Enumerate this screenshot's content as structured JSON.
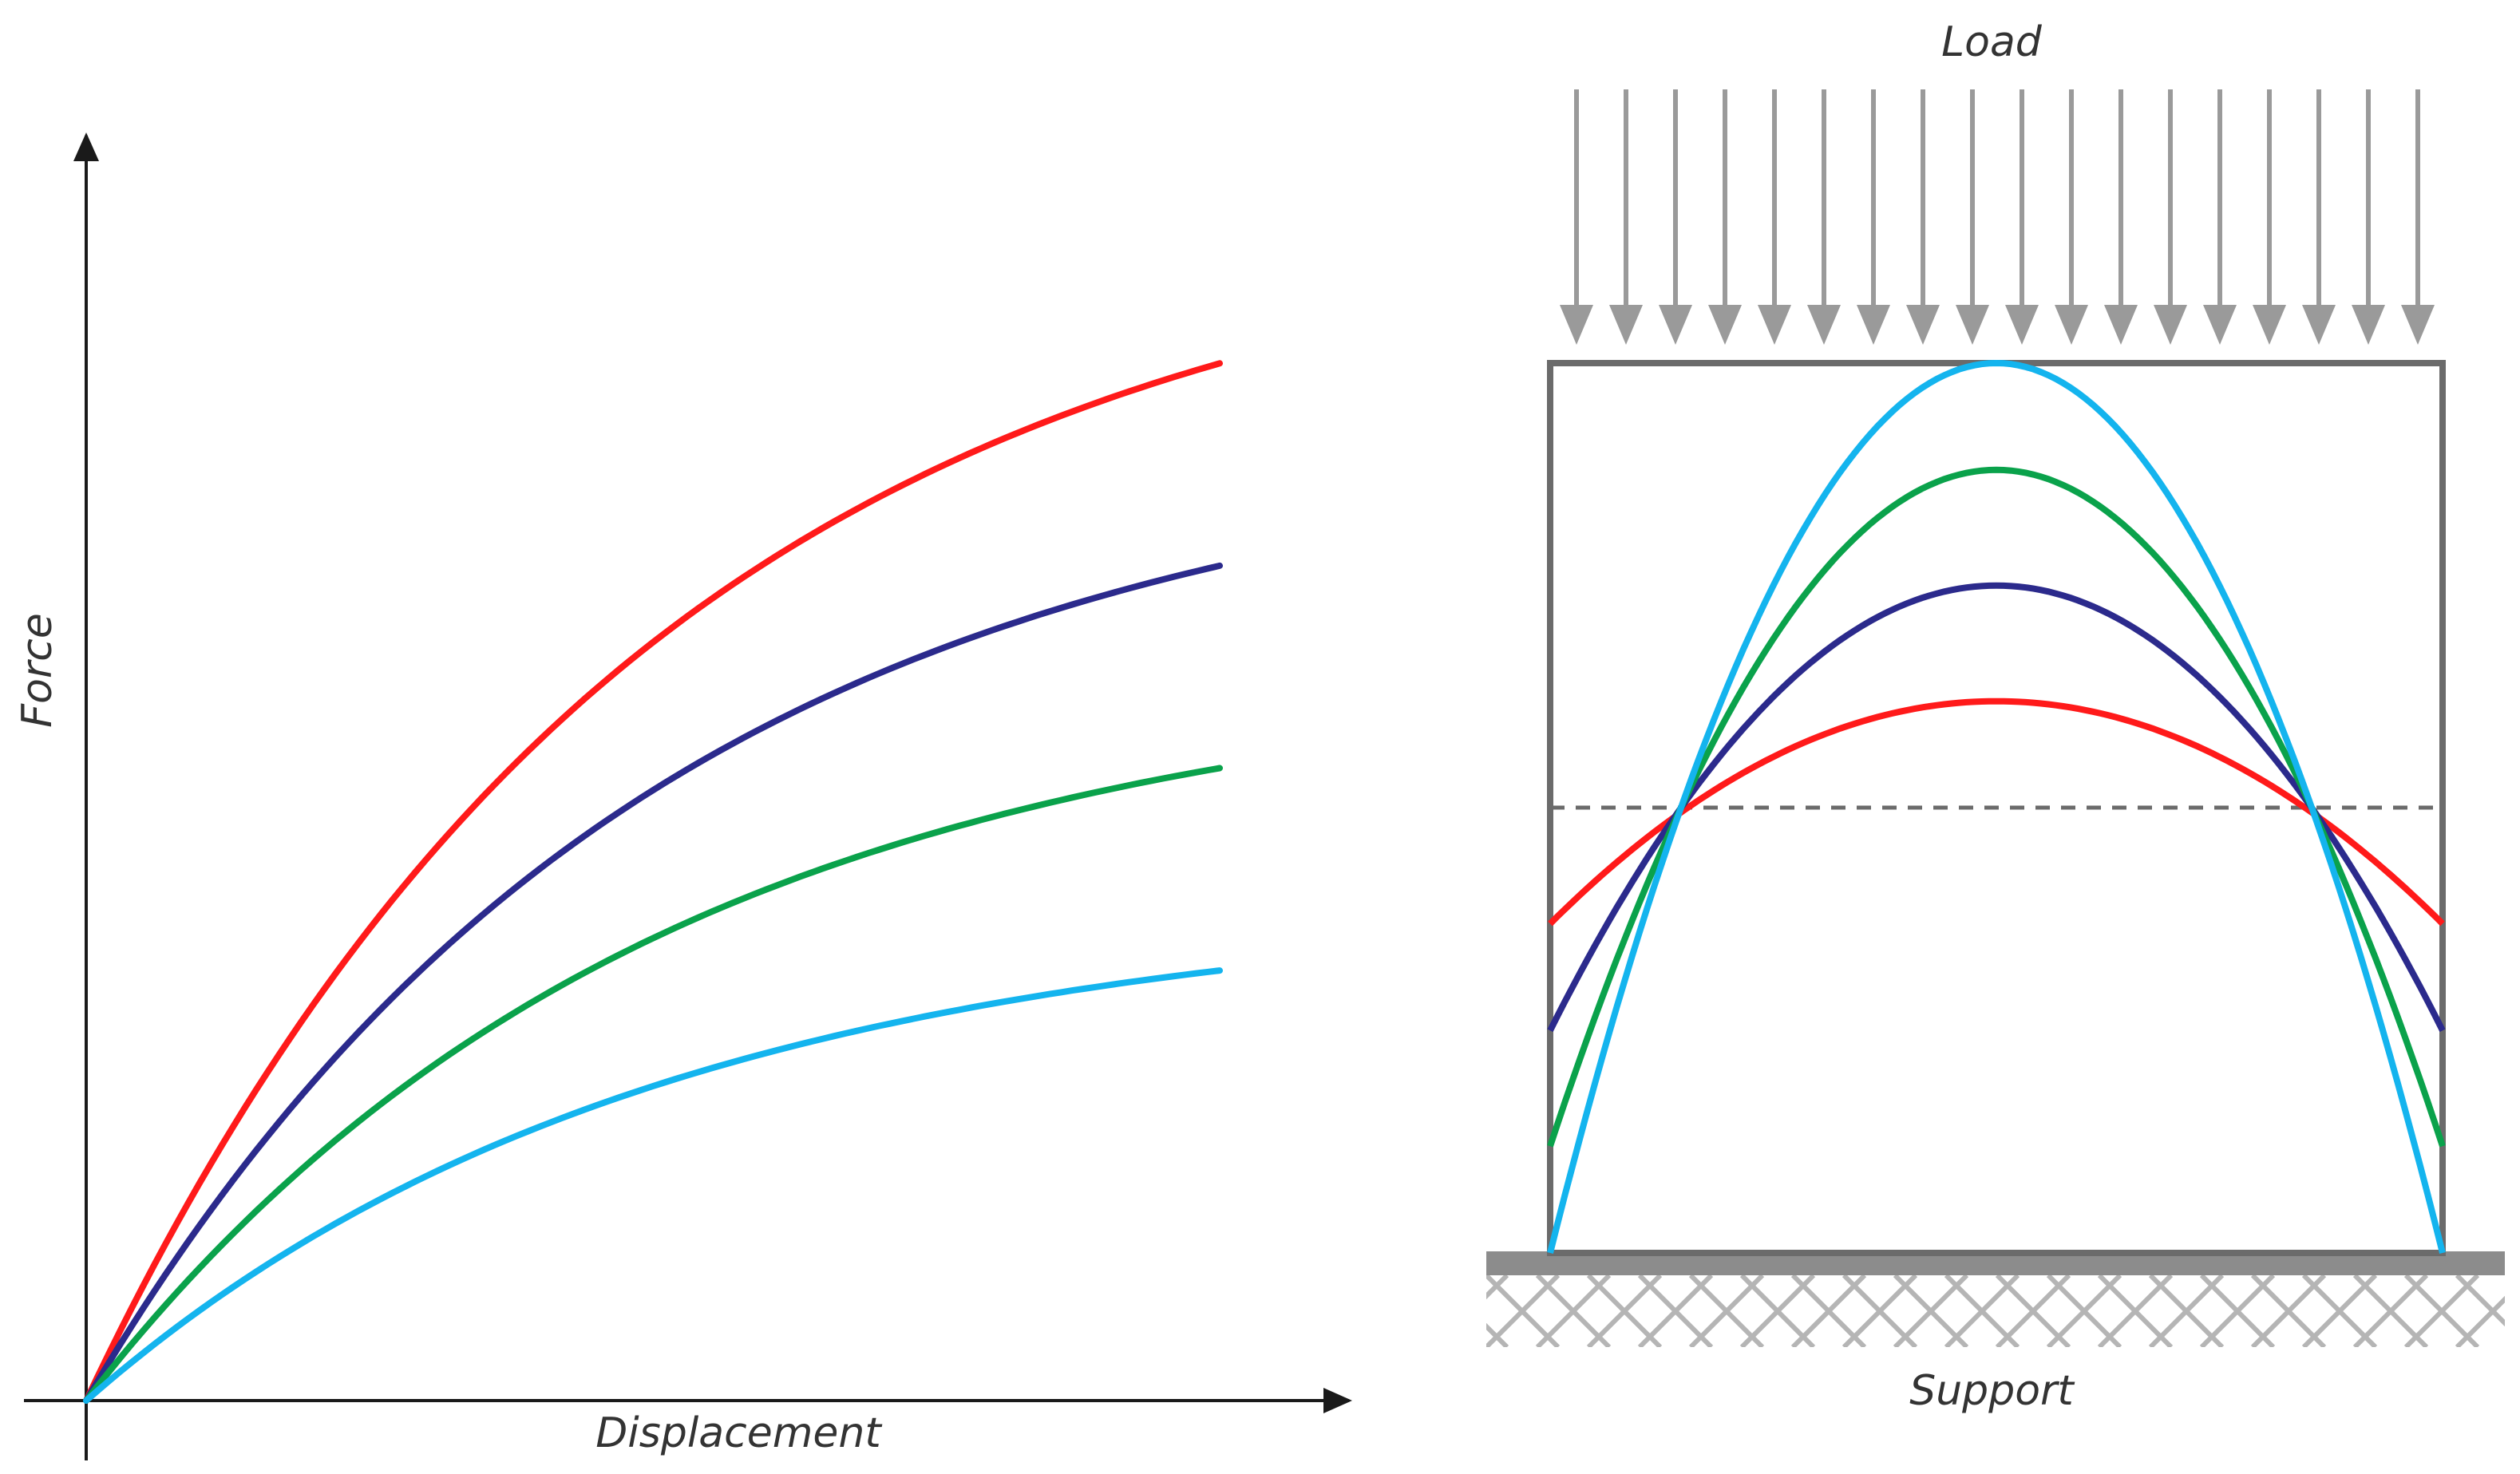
{
  "colors": {
    "axis": "#1a1a1a",
    "frame": "#6b6b6b",
    "arrow": "#9a9a9a",
    "support_bar": "#8c8c8c",
    "hatch": "#b5b5b5",
    "dashed": "#6b6b6b",
    "text": "#333333"
  },
  "left_graph": {
    "x_label": "Displacement",
    "y_label": "Force",
    "curves": [
      {
        "color": "#ff1a1a",
        "end_level": 0.82
      },
      {
        "color": "#2b2a8c",
        "end_level": 0.66
      },
      {
        "color": "#0aa24b",
        "end_level": 0.5
      },
      {
        "color": "#14b4ee",
        "end_level": 0.34
      }
    ]
  },
  "right_diagram": {
    "top_label": "Load",
    "bottom_label": "Support",
    "load_arrow_count": 18,
    "profiles": [
      {
        "color": "#ff1a1a",
        "peak_level": 0.62,
        "edge_level": 0.37
      },
      {
        "color": "#2b2a8c",
        "peak_level": 0.75,
        "edge_level": 0.25
      },
      {
        "color": "#0aa24b",
        "peak_level": 0.88,
        "edge_level": 0.12
      },
      {
        "color": "#14b4ee",
        "peak_level": 1.0,
        "edge_level": 0.0
      }
    ],
    "dashed_level": 0.5
  }
}
